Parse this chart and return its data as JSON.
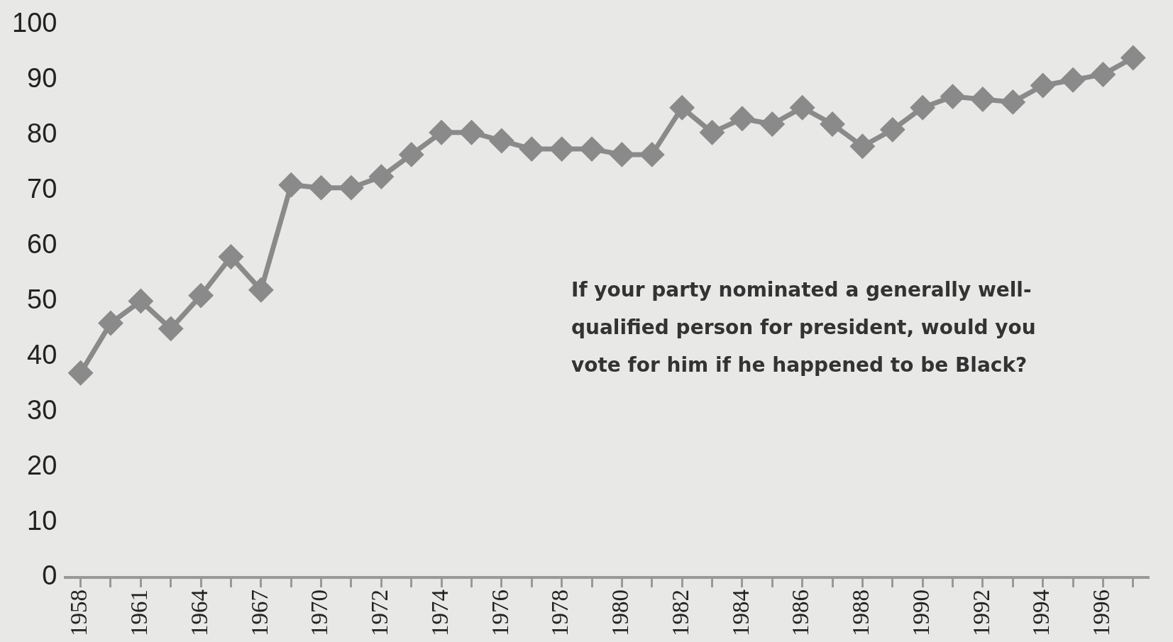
{
  "chart_data": {
    "type": "line",
    "categories": [
      "1958",
      null,
      "1961",
      null,
      "1964",
      null,
      "1967",
      null,
      "1970",
      null,
      "1972",
      null,
      "1974",
      null,
      "1976",
      null,
      "1978",
      null,
      "1980",
      null,
      "1982",
      null,
      "1984",
      null,
      "1986",
      null,
      "1988",
      null,
      "1990",
      null,
      "1992",
      null,
      "1994",
      null,
      "1996",
      null
    ],
    "series": [
      {
        "color": "#8a8a8a",
        "values": [
          37,
          46,
          50,
          45,
          51,
          58,
          52,
          71,
          70.5,
          70.5,
          72.5,
          76.5,
          80.5,
          80.5,
          79,
          77.5,
          77.5,
          77.5,
          76.5,
          76.5,
          85,
          80.5,
          83,
          82,
          85,
          82,
          78,
          81,
          85,
          87,
          86.5,
          86,
          89,
          90,
          91,
          94
        ]
      }
    ],
    "ylim": [
      0,
      100
    ],
    "yticks": [
      0,
      10,
      20,
      30,
      40,
      50,
      60,
      70,
      80,
      90,
      100
    ],
    "grid": false,
    "legend": false,
    "marker": "diamond",
    "line_style": "solid",
    "annotations": [
      {
        "text": "If your party nominated a generally well-qualified person for president, would you vote for him if he happened to be Black?"
      }
    ]
  }
}
